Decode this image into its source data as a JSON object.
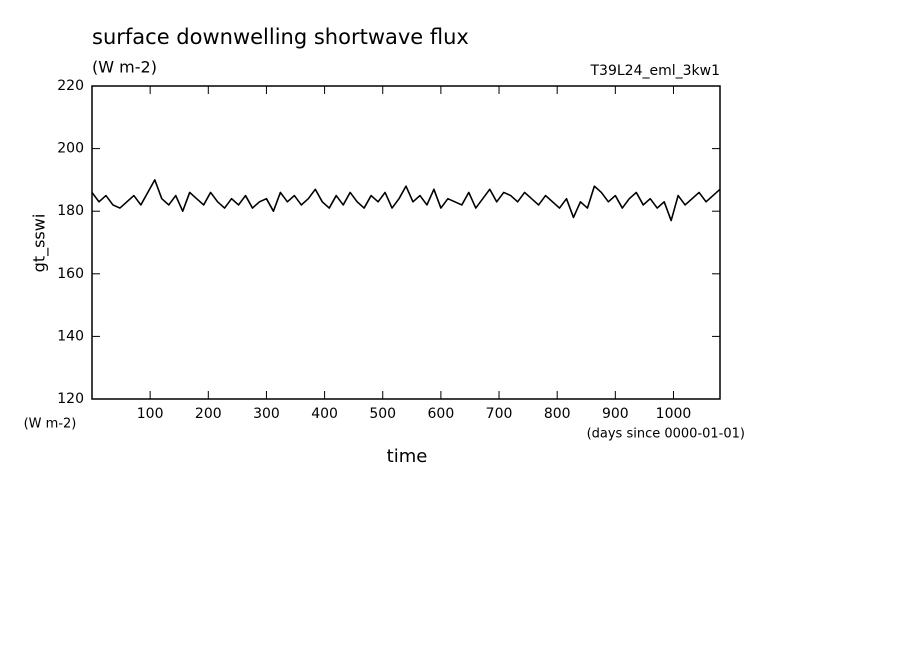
{
  "chart_data": {
    "type": "line",
    "title": "surface downwelling shortwave flux",
    "subtitle": "(W m-2)",
    "run_label": "T39L24_eml_3kw1",
    "ylabel": "gt_sswi",
    "y_unit": "(W m-2)",
    "xlabel": "time",
    "x_unit": "(days since 0000-01-01)",
    "xlim": [
      0,
      1080
    ],
    "ylim": [
      120,
      220
    ],
    "xticks": [
      100,
      200,
      300,
      400,
      500,
      600,
      700,
      800,
      900,
      1000
    ],
    "yticks": [
      120,
      140,
      160,
      180,
      200,
      220
    ],
    "grid": false,
    "x": [
      0,
      12,
      24,
      36,
      48,
      60,
      72,
      84,
      96,
      108,
      120,
      132,
      144,
      156,
      168,
      180,
      192,
      204,
      216,
      228,
      240,
      252,
      264,
      276,
      288,
      300,
      312,
      324,
      336,
      348,
      360,
      372,
      384,
      396,
      408,
      420,
      432,
      444,
      456,
      468,
      480,
      492,
      504,
      516,
      528,
      540,
      552,
      564,
      576,
      588,
      600,
      612,
      624,
      636,
      648,
      660,
      672,
      684,
      696,
      708,
      720,
      732,
      744,
      756,
      768,
      780,
      792,
      804,
      816,
      828,
      840,
      852,
      864,
      876,
      888,
      900,
      912,
      924,
      936,
      948,
      960,
      972,
      984,
      996,
      1008,
      1020,
      1032,
      1044,
      1056,
      1068,
      1080
    ],
    "series": [
      {
        "color": "#000000",
        "values": [
          186,
          183,
          185,
          182,
          181,
          183,
          185,
          182,
          186,
          190,
          184,
          182,
          185,
          180,
          186,
          184,
          182,
          186,
          183,
          181,
          184,
          182,
          185,
          181,
          183,
          184,
          180,
          186,
          183,
          185,
          182,
          184,
          187,
          183,
          181,
          185,
          182,
          186,
          183,
          181,
          185,
          183,
          186,
          181,
          184,
          188,
          183,
          185,
          182,
          187,
          181,
          184,
          183,
          182,
          186,
          181,
          184,
          187,
          183,
          186,
          185,
          183,
          186,
          184,
          182,
          185,
          183,
          181,
          184,
          178,
          183,
          181,
          188,
          186,
          183,
          185,
          181,
          184,
          186,
          182,
          184,
          181,
          183,
          177,
          185,
          182,
          184,
          186,
          183,
          185,
          187
        ]
      }
    ]
  }
}
